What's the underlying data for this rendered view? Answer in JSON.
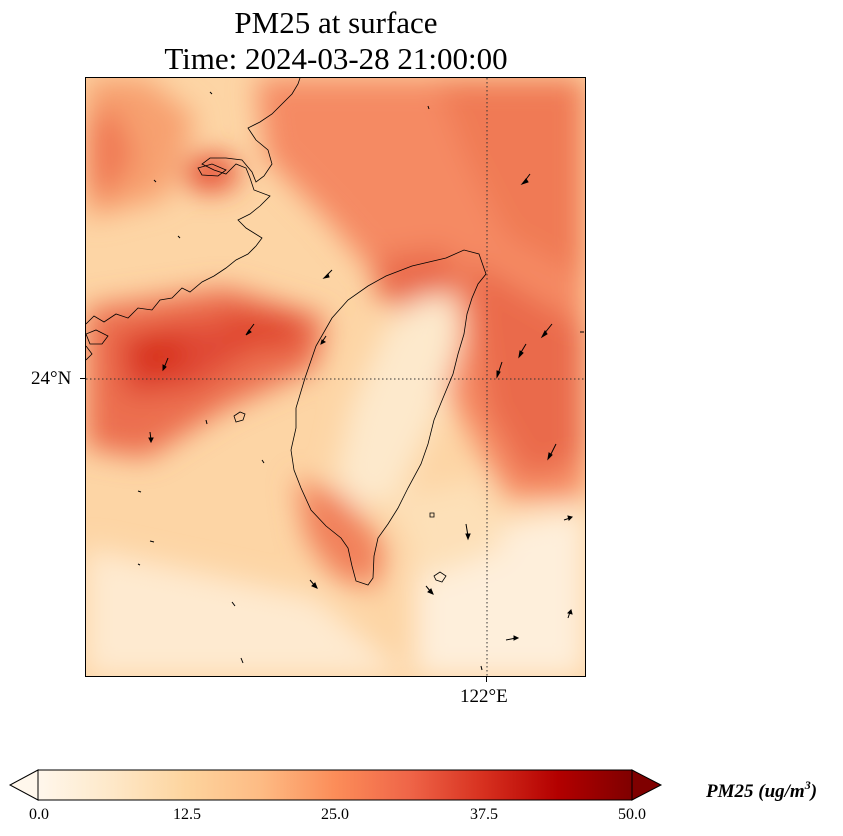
{
  "figure": {
    "title_line1": "PM25 at surface",
    "title_line2": "Time: 2024-03-28 21:00:00"
  },
  "map": {
    "extent": {
      "lon_min": 119.0,
      "lon_max": 122.75,
      "lat_min": 21.75,
      "lat_max": 26.25
    },
    "gridlines": {
      "lon": 122.0,
      "lat": 24.0,
      "style": "dotted"
    },
    "lat_label": "24°N",
    "lon_label": "122°E",
    "field": "PM25",
    "colormap": "OrRd",
    "wind_vectors": "shown"
  },
  "colorbar": {
    "min": 0.0,
    "max": 50.0,
    "extend": "both",
    "ticks": [
      "0.0",
      "12.5",
      "25.0",
      "37.5",
      "50.0"
    ],
    "label_prefix": "PM25 (ug/m",
    "label_sup": "3",
    "label_suffix": ")",
    "colors": [
      "#fff7ec",
      "#fee8c8",
      "#fdd49e",
      "#fdbb84",
      "#fc8d59",
      "#ef6548",
      "#d7301f",
      "#b30000",
      "#7f0000"
    ]
  }
}
